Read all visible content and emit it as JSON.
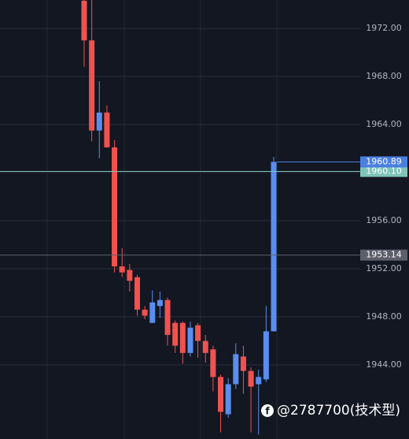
{
  "chart_data": {
    "type": "candlestick",
    "up_color": "#5b8def",
    "down_color": "#f0524f",
    "open": [
      1974.3,
      1971.0,
      1963.5,
      1965.0,
      1962.1,
      1952.2,
      1951.9,
      1951.3,
      1948.6,
      1947.5,
      1948.9,
      1949.4,
      1947.5,
      1947.5,
      1945.0,
      1947.3,
      1946.0,
      1945.3,
      1943.0,
      1939.9,
      1942.4,
      1944.7,
      1943.5,
      1942.4,
      1942.8,
      1946.8
    ],
    "high": [
      1974.4,
      1974.4,
      1967.6,
      1965.6,
      1962.7,
      1953.7,
      1952.4,
      1951.5,
      1948.9,
      1950.2,
      1950.1,
      1949.6,
      1947.7,
      1947.6,
      1947.6,
      1947.5,
      1946.5,
      1945.6,
      1943.2,
      1942.9,
      1945.8,
      1945.6,
      1943.8,
      1943.6,
      1948.9,
      1961.3
    ],
    "low": [
      1968.8,
      1962.6,
      1961.2,
      1962.1,
      1951.7,
      1951.3,
      1950.1,
      1948.1,
      1947.8,
      1947.5,
      1947.9,
      1945.6,
      1945.0,
      1944.1,
      1944.7,
      1944.6,
      1944.2,
      1941.8,
      1938.4,
      1939.6,
      1942.0,
      1941.6,
      1938.4,
      1938.2,
      1942.6,
      1946.8
    ],
    "close": [
      1971.0,
      1963.5,
      1965.0,
      1962.1,
      1952.2,
      1951.7,
      1951.0,
      1948.6,
      1948.1,
      1949.2,
      1949.4,
      1946.5,
      1945.6,
      1945.0,
      1947.1,
      1946.0,
      1945.0,
      1943.0,
      1940.1,
      1942.4,
      1944.9,
      1943.5,
      1942.2,
      1943.0,
      1946.8,
      1960.89
    ],
    "ylim": [
      1937.84,
      1974.36
    ],
    "yticks": [
      {
        "value": 1944,
        "label": "1944.00"
      },
      {
        "value": 1948,
        "label": "1948.00"
      },
      {
        "value": 1952,
        "label": "1952.00"
      },
      {
        "value": 1956,
        "label": "1956.00"
      },
      {
        "value": 1960,
        "label": "1960.00"
      },
      {
        "value": 1964,
        "label": "1964.00"
      },
      {
        "value": 1968,
        "label": "1968.00"
      },
      {
        "value": 1972,
        "label": "1972.00"
      }
    ],
    "grid": true,
    "price_markers": [
      {
        "value": 1953.14,
        "label": "1953.14",
        "color": "#5d606b"
      },
      {
        "value": 1960.1,
        "label": "1960.10",
        "color": "#7fc4b8"
      },
      {
        "value": 1960.89,
        "label": "1960.89",
        "color": "#4a7fe0"
      }
    ],
    "watermark": "@2787700(技术型)"
  }
}
